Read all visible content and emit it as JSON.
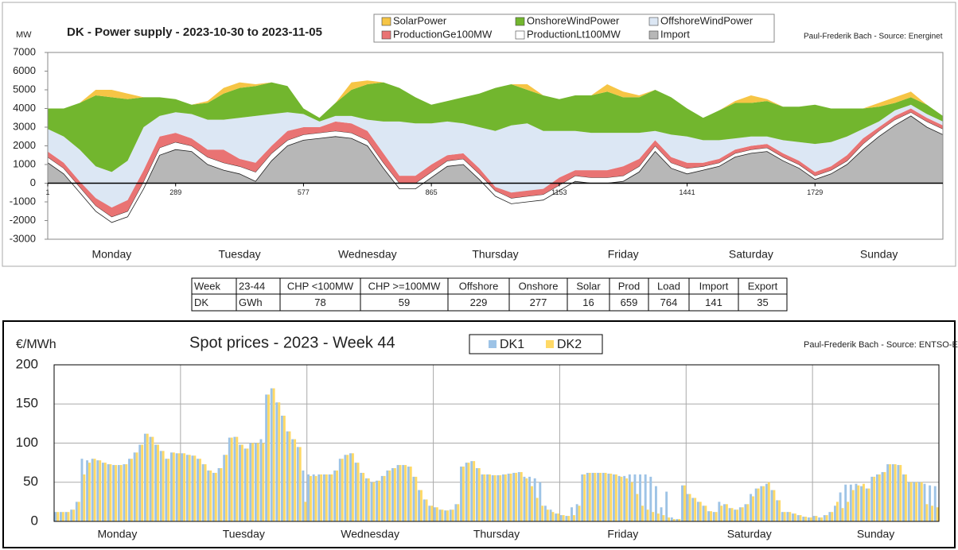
{
  "chart_data": [
    {
      "type": "area",
      "stacked": true,
      "title": "DK - Power supply - 2023-10-30 to 2023-11-05",
      "unit_label": "MW",
      "source": "Paul-Frederik Bach - Source: Energinet",
      "x": [
        1,
        37,
        73,
        109,
        145,
        181,
        217,
        253,
        289,
        325,
        361,
        397,
        433,
        469,
        505,
        541,
        577,
        613,
        649,
        685,
        721,
        757,
        793,
        829,
        865,
        901,
        937,
        973,
        1009,
        1045,
        1081,
        1117,
        1153,
        1189,
        1225,
        1261,
        1297,
        1333,
        1369,
        1405,
        1441,
        1477,
        1513,
        1549,
        1585,
        1621,
        1657,
        1693,
        1729,
        1765,
        1801,
        1837,
        1873,
        1909,
        1945,
        1981,
        2017
      ],
      "xlim": [
        1,
        2017
      ],
      "xticks": [
        1,
        289,
        577,
        865,
        1153,
        1441,
        1729
      ],
      "ylim": [
        -3000,
        7000
      ],
      "yticks": [
        -3000,
        -2000,
        -1000,
        0,
        1000,
        2000,
        3000,
        4000,
        5000,
        6000,
        7000
      ],
      "day_labels": [
        "Monday",
        "Tuesday",
        "Wednesday",
        "Thursday",
        "Friday",
        "Saturday",
        "Sunday"
      ],
      "series": [
        {
          "name": "Import",
          "color": "#b7b7b7",
          "values": [
            1100,
            500,
            -500,
            -1500,
            -2100,
            -1800,
            -300,
            1500,
            1800,
            1700,
            1000,
            700,
            500,
            100,
            1200,
            2000,
            2300,
            2400,
            2500,
            2400,
            2000,
            800,
            -300,
            -300,
            300,
            900,
            1000,
            200,
            -700,
            -1100,
            -1000,
            -900,
            -400,
            100,
            0,
            0,
            100,
            600,
            1700,
            800,
            500,
            700,
            900,
            1400,
            1600,
            1700,
            1200,
            800,
            200,
            500,
            1000,
            1800,
            2500,
            3100,
            3600,
            3000,
            2600
          ]
        },
        {
          "name": "ProductionLt100MW",
          "color": "#ffffff",
          "values": [
            300,
            300,
            300,
            300,
            300,
            300,
            400,
            400,
            400,
            300,
            400,
            400,
            400,
            500,
            400,
            300,
            300,
            300,
            300,
            300,
            300,
            300,
            300,
            300,
            300,
            300,
            300,
            300,
            300,
            300,
            300,
            300,
            300,
            300,
            300,
            300,
            300,
            300,
            300,
            300,
            300,
            200,
            200,
            200,
            200,
            200,
            200,
            200,
            200,
            200,
            200,
            300,
            300,
            300,
            200,
            300,
            300
          ]
        },
        {
          "name": "ProductionGe100MW",
          "color": "#e97373",
          "values": [
            300,
            300,
            300,
            400,
            500,
            600,
            600,
            600,
            500,
            400,
            400,
            700,
            400,
            500,
            400,
            500,
            400,
            300,
            500,
            500,
            500,
            500,
            400,
            400,
            400,
            300,
            300,
            300,
            200,
            300,
            300,
            300,
            400,
            300,
            400,
            400,
            500,
            400,
            300,
            300,
            300,
            200,
            200,
            200,
            200,
            200,
            200,
            200,
            200,
            200,
            300,
            300,
            200,
            200,
            200,
            200,
            200
          ]
        },
        {
          "name": "OffshoreWindPower",
          "color": "#dce7f4",
          "values": [
            1200,
            1400,
            1700,
            1700,
            1900,
            2100,
            2300,
            1100,
            1100,
            1300,
            1600,
            1600,
            2200,
            2500,
            1700,
            1000,
            700,
            300,
            300,
            400,
            600,
            1700,
            2900,
            2800,
            2200,
            1800,
            1600,
            2200,
            3000,
            3600,
            3600,
            3100,
            2500,
            2100,
            2000,
            2000,
            1800,
            1400,
            500,
            1200,
            1400,
            1200,
            1000,
            600,
            500,
            400,
            700,
            1000,
            1500,
            1300,
            1000,
            500,
            300,
            300,
            200,
            200,
            200
          ]
        },
        {
          "name": "OnshoreWindPower",
          "color": "#72b62e",
          "values": [
            1100,
            1500,
            2500,
            3800,
            4000,
            3300,
            1600,
            1000,
            700,
            500,
            900,
            1400,
            1600,
            1600,
            1700,
            1400,
            300,
            200,
            700,
            1400,
            1900,
            2100,
            1800,
            1400,
            1000,
            1100,
            1400,
            1800,
            2300,
            2200,
            1800,
            1900,
            1700,
            1900,
            2000,
            2200,
            1900,
            1900,
            2200,
            2000,
            1500,
            1200,
            1600,
            1900,
            1800,
            1900,
            1800,
            1900,
            2100,
            1800,
            1500,
            1100,
            800,
            400,
            400,
            500,
            300
          ]
        },
        {
          "name": "SolarPower",
          "color": "#f6c545",
          "values": [
            0,
            0,
            0,
            300,
            400,
            300,
            0,
            0,
            0,
            0,
            100,
            300,
            300,
            100,
            0,
            0,
            0,
            0,
            0,
            400,
            200,
            0,
            0,
            0,
            0,
            0,
            0,
            0,
            0,
            0,
            300,
            0,
            0,
            0,
            0,
            400,
            300,
            100,
            0,
            0,
            0,
            0,
            0,
            100,
            400,
            100,
            0,
            0,
            0,
            0,
            0,
            0,
            200,
            300,
            300,
            0,
            0
          ]
        }
      ]
    },
    {
      "type": "bar",
      "title": "Spot prices - 2023 - Week 44",
      "unit_label": "€/MWh",
      "source": "Paul-Frederik Bach - Source: ENTSO-E",
      "ylim": [
        0,
        200
      ],
      "yticks": [
        0,
        50,
        100,
        150,
        200
      ],
      "grid": true,
      "day_labels": [
        "Monday",
        "Tuesday",
        "Wednesday",
        "Thursday",
        "Friday",
        "Saturday",
        "Sunday"
      ],
      "series": [
        {
          "name": "DK1",
          "color": "#9dc3e6",
          "values": [
            12,
            12,
            12,
            15,
            25,
            80,
            78,
            80,
            78,
            75,
            73,
            72,
            72,
            73,
            80,
            88,
            98,
            112,
            108,
            98,
            90,
            80,
            88,
            87,
            87,
            85,
            84,
            80,
            73,
            65,
            62,
            68,
            85,
            107,
            108,
            98,
            93,
            100,
            100,
            105,
            162,
            170,
            152,
            135,
            115,
            105,
            95,
            65,
            60,
            60,
            60,
            60,
            60,
            65,
            80,
            85,
            87,
            75,
            62,
            55,
            50,
            52,
            58,
            65,
            68,
            72,
            72,
            70,
            57,
            40,
            28,
            20,
            18,
            15,
            14,
            15,
            22,
            70,
            75,
            77,
            68,
            60,
            60,
            59,
            59,
            60,
            61,
            62,
            63,
            57,
            57,
            55,
            50,
            20,
            15,
            10,
            8,
            7,
            18,
            22,
            60,
            62,
            62,
            62,
            62,
            61,
            60,
            58,
            58,
            60,
            60,
            60,
            60,
            57,
            45,
            18,
            38,
            5,
            3,
            46,
            35,
            30,
            25,
            20,
            13,
            12,
            25,
            22,
            17,
            15,
            18,
            22,
            35,
            42,
            45,
            48,
            40,
            27,
            12,
            12,
            10,
            8,
            6,
            5,
            7,
            5,
            8,
            12,
            20,
            37,
            47,
            47,
            48,
            45,
            42,
            57,
            60,
            63,
            73,
            73,
            72,
            60,
            50,
            50,
            50,
            48,
            46,
            45
          ]
        },
        {
          "name": "DK2",
          "color": "#ffd966",
          "values": [
            12,
            12,
            12,
            15,
            25,
            60,
            75,
            80,
            78,
            75,
            73,
            72,
            72,
            73,
            80,
            88,
            98,
            112,
            108,
            98,
            90,
            80,
            88,
            87,
            87,
            85,
            84,
            80,
            73,
            65,
            62,
            68,
            85,
            107,
            108,
            98,
            93,
            100,
            100,
            100,
            162,
            170,
            152,
            135,
            115,
            105,
            95,
            25,
            58,
            58,
            60,
            60,
            60,
            65,
            80,
            85,
            87,
            75,
            62,
            55,
            50,
            52,
            58,
            65,
            68,
            72,
            72,
            70,
            57,
            40,
            28,
            20,
            18,
            15,
            14,
            15,
            22,
            70,
            75,
            77,
            68,
            60,
            60,
            59,
            59,
            60,
            61,
            62,
            63,
            55,
            45,
            30,
            20,
            15,
            12,
            10,
            8,
            7,
            8,
            20,
            60,
            62,
            62,
            62,
            62,
            61,
            60,
            57,
            55,
            50,
            35,
            20,
            15,
            12,
            10,
            8,
            5,
            3,
            3,
            46,
            35,
            30,
            25,
            20,
            13,
            12,
            20,
            22,
            17,
            15,
            18,
            22,
            32,
            42,
            45,
            50,
            40,
            27,
            12,
            12,
            10,
            8,
            6,
            5,
            7,
            5,
            8,
            12,
            25,
            17,
            25,
            40,
            46,
            48,
            42,
            57,
            60,
            63,
            73,
            73,
            72,
            60,
            50,
            50,
            50,
            22,
            20,
            18
          ]
        }
      ]
    }
  ],
  "table": {
    "rows": [
      [
        "Week",
        "23-44",
        "CHP <100MW",
        "CHP >=100MW",
        "Offshore",
        "Onshore",
        "Solar",
        "Prod",
        "Load",
        "Import",
        "Export"
      ],
      [
        "DK",
        "GWh",
        78,
        59,
        229,
        277,
        16,
        659,
        764,
        141,
        35
      ]
    ]
  }
}
